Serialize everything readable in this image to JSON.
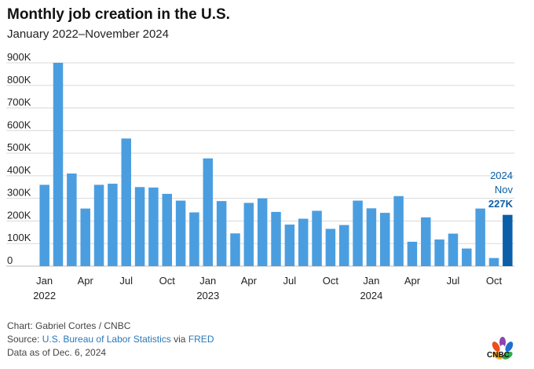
{
  "header": {
    "title": "Monthly job creation in the U.S.",
    "subtitle": "January 2022–November 2024"
  },
  "annotation": {
    "year": "2024",
    "month": "Nov",
    "value": "227K"
  },
  "footer": {
    "chart_credit": "Chart: Gabriel Cortes / CNBC",
    "source_prefix": "Source: ",
    "source_link": "U.S. Bureau of Labor Statistics",
    "source_mid": " via ",
    "source_link2": "FRED",
    "data_as_of": "Data as of Dec. 6, 2024"
  },
  "logo": {
    "text": "CNBC"
  },
  "colors": {
    "bar": "#4a9ee0",
    "highlight_bar": "#0b5fa8",
    "annotation": "#0b5fa8",
    "grid": "#d9d9d9"
  },
  "chart_data": {
    "type": "bar",
    "title": "Monthly job creation in the U.S.",
    "subtitle": "January 2022–November 2024",
    "xlabel": "",
    "ylabel": "",
    "ylim": [
      0,
      900000
    ],
    "yticks": [
      0,
      100000,
      200000,
      300000,
      400000,
      500000,
      600000,
      700000,
      800000,
      900000
    ],
    "ytick_labels": [
      "0",
      "100K",
      "200K",
      "300K",
      "400K",
      "500K",
      "600K",
      "700K",
      "800K",
      "900K"
    ],
    "grid": true,
    "categories": [
      "2022-01",
      "2022-02",
      "2022-03",
      "2022-04",
      "2022-05",
      "2022-06",
      "2022-07",
      "2022-08",
      "2022-09",
      "2022-10",
      "2022-11",
      "2022-12",
      "2023-01",
      "2023-02",
      "2023-03",
      "2023-04",
      "2023-05",
      "2023-06",
      "2023-07",
      "2023-08",
      "2023-09",
      "2023-10",
      "2023-11",
      "2023-12",
      "2024-01",
      "2024-02",
      "2024-03",
      "2024-04",
      "2024-05",
      "2024-06",
      "2024-07",
      "2024-08",
      "2024-09",
      "2024-10",
      "2024-11"
    ],
    "values": [
      360000,
      900000,
      410000,
      255000,
      360000,
      365000,
      565000,
      350000,
      348000,
      320000,
      290000,
      238000,
      477000,
      288000,
      145000,
      280000,
      300000,
      240000,
      184000,
      210000,
      245000,
      165000,
      182000,
      290000,
      256000,
      236000,
      310000,
      108000,
      216000,
      118000,
      144000,
      78000,
      255000,
      36000,
      227000
    ],
    "xtick_labels": [
      {
        "index": 0,
        "month": "Jan",
        "year": "2022"
      },
      {
        "index": 3,
        "month": "Apr",
        "year": ""
      },
      {
        "index": 6,
        "month": "Jul",
        "year": ""
      },
      {
        "index": 9,
        "month": "Oct",
        "year": ""
      },
      {
        "index": 12,
        "month": "Jan",
        "year": "2023"
      },
      {
        "index": 15,
        "month": "Apr",
        "year": ""
      },
      {
        "index": 18,
        "month": "Jul",
        "year": ""
      },
      {
        "index": 21,
        "month": "Oct",
        "year": ""
      },
      {
        "index": 24,
        "month": "Jan",
        "year": "2024"
      },
      {
        "index": 27,
        "month": "Apr",
        "year": ""
      },
      {
        "index": 30,
        "month": "Jul",
        "year": ""
      },
      {
        "index": 33,
        "month": "Oct",
        "year": ""
      }
    ],
    "highlight_index": 34
  }
}
